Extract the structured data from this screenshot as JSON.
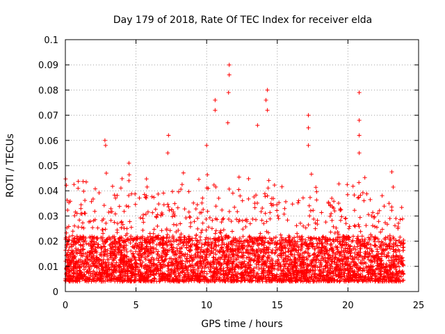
{
  "chart_data": {
    "type": "scatter",
    "title": "Day 179 of 2018, Rate Of TEC Index for receiver elda",
    "xlabel": "GPS time / hours",
    "ylabel": "ROTI / TECUs",
    "xlim": [
      0,
      25
    ],
    "ylim": [
      0,
      0.1
    ],
    "x_ticks": [
      0,
      5,
      10,
      15,
      20,
      25
    ],
    "x_tick_labels": [
      "0",
      "5",
      "10",
      "15",
      "20",
      "25"
    ],
    "y_ticks": [
      0,
      0.01,
      0.02,
      0.03,
      0.04,
      0.05,
      0.06,
      0.07,
      0.08,
      0.09,
      0.1
    ],
    "y_tick_labels": [
      "0",
      "0.01",
      "0.02",
      "0.03",
      "0.04",
      "0.05",
      "0.06",
      "0.07",
      "0.08",
      "0.09",
      "0.1"
    ],
    "grid": true,
    "marker": "+",
    "marker_color": "#ff0000",
    "series": [
      {
        "name": "ROTI",
        "x_range_hours": [
          0,
          23.95
        ],
        "baseline_range": [
          0.004,
          0.022
        ],
        "note": "dense cloud of points across the full day",
        "highlights": [
          {
            "x": 0.9,
            "y": 0.041
          },
          {
            "x": 2.8,
            "y": 0.06
          },
          {
            "x": 2.85,
            "y": 0.058
          },
          {
            "x": 2.9,
            "y": 0.047
          },
          {
            "x": 4.5,
            "y": 0.051
          },
          {
            "x": 4.5,
            "y": 0.044
          },
          {
            "x": 7.3,
            "y": 0.062
          },
          {
            "x": 7.25,
            "y": 0.055
          },
          {
            "x": 10.6,
            "y": 0.076
          },
          {
            "x": 10.6,
            "y": 0.072
          },
          {
            "x": 10.0,
            "y": 0.058
          },
          {
            "x": 11.6,
            "y": 0.09
          },
          {
            "x": 11.6,
            "y": 0.086
          },
          {
            "x": 11.55,
            "y": 0.079
          },
          {
            "x": 11.5,
            "y": 0.067
          },
          {
            "x": 14.3,
            "y": 0.08
          },
          {
            "x": 14.2,
            "y": 0.076
          },
          {
            "x": 14.3,
            "y": 0.072
          },
          {
            "x": 13.6,
            "y": 0.066
          },
          {
            "x": 17.2,
            "y": 0.07
          },
          {
            "x": 17.2,
            "y": 0.065
          },
          {
            "x": 17.2,
            "y": 0.058
          },
          {
            "x": 20.8,
            "y": 0.079
          },
          {
            "x": 20.8,
            "y": 0.068
          },
          {
            "x": 20.8,
            "y": 0.062
          },
          {
            "x": 20.8,
            "y": 0.055
          }
        ]
      }
    ]
  }
}
